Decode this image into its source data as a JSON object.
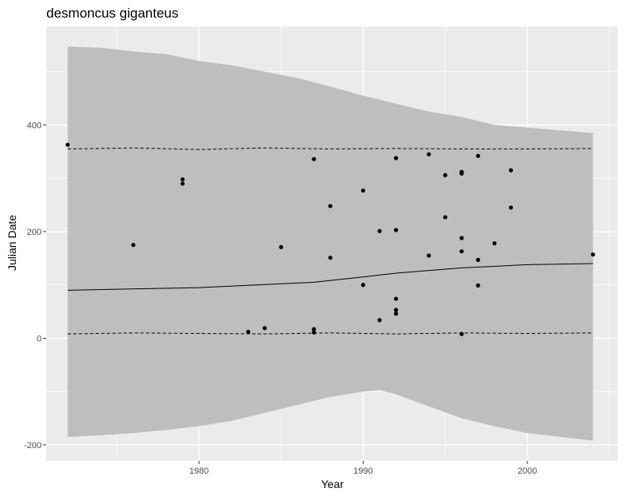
{
  "chart_data": {
    "type": "scatter",
    "title": "desmoncus giganteus",
    "xlabel": "Year",
    "ylabel": "Julian Date",
    "xlim": [
      1970.7,
      2005.5
    ],
    "ylim": [
      -230,
      585
    ],
    "x_ticks": [
      1980,
      1990,
      2000
    ],
    "y_ticks": [
      -200,
      0,
      200,
      400
    ],
    "x_minor": [
      1975,
      1985,
      1995,
      2005
    ],
    "y_minor": [
      -100,
      100,
      300,
      500
    ],
    "grid": true,
    "colors": {
      "panel": "#ebebeb",
      "grid": "#ffffff",
      "band": "#bebebe",
      "point": "#000000",
      "line": "#000000"
    },
    "points": [
      [
        1972,
        363
      ],
      [
        1976,
        175
      ],
      [
        1979,
        298
      ],
      [
        1979,
        290
      ],
      [
        1983,
        12
      ],
      [
        1984,
        19
      ],
      [
        1985,
        171
      ],
      [
        1987,
        336
      ],
      [
        1987,
        17
      ],
      [
        1987,
        11
      ],
      [
        1988,
        248
      ],
      [
        1988,
        151
      ],
      [
        1990,
        277
      ],
      [
        1990,
        100
      ],
      [
        1991,
        201
      ],
      [
        1991,
        34
      ],
      [
        1992,
        338
      ],
      [
        1992,
        203
      ],
      [
        1992,
        74
      ],
      [
        1992,
        53
      ],
      [
        1992,
        46
      ],
      [
        1994,
        345
      ],
      [
        1994,
        155
      ],
      [
        1995,
        306
      ],
      [
        1995,
        227
      ],
      [
        1996,
        312
      ],
      [
        1996,
        309
      ],
      [
        1996,
        188
      ],
      [
        1996,
        163
      ],
      [
        1996,
        8
      ],
      [
        1997,
        342
      ],
      [
        1997,
        147
      ],
      [
        1997,
        99
      ],
      [
        1998,
        178
      ],
      [
        1999,
        315
      ],
      [
        1999,
        245
      ],
      [
        2004,
        157
      ]
    ],
    "fit_line": [
      [
        1972,
        90
      ],
      [
        1980,
        95
      ],
      [
        1987,
        105
      ],
      [
        1990,
        115
      ],
      [
        1992,
        122
      ],
      [
        1996,
        132
      ],
      [
        2000,
        138
      ],
      [
        2004,
        140
      ]
    ],
    "upper_dashed": [
      [
        1972,
        355
      ],
      [
        1976,
        357
      ],
      [
        1980,
        354
      ],
      [
        1984,
        357
      ],
      [
        1988,
        355
      ],
      [
        1992,
        356
      ],
      [
        1996,
        355
      ],
      [
        2000,
        355
      ],
      [
        2004,
        356
      ]
    ],
    "lower_dashed": [
      [
        1972,
        8
      ],
      [
        1976,
        10
      ],
      [
        1980,
        9
      ],
      [
        1984,
        8
      ],
      [
        1988,
        10
      ],
      [
        1992,
        8
      ],
      [
        1996,
        10
      ],
      [
        2000,
        9
      ],
      [
        2004,
        10
      ]
    ],
    "band_upper": [
      [
        1972,
        547
      ],
      [
        1974,
        545
      ],
      [
        1976,
        538
      ],
      [
        1978,
        533
      ],
      [
        1980,
        520
      ],
      [
        1982,
        512
      ],
      [
        1984,
        500
      ],
      [
        1986,
        488
      ],
      [
        1988,
        472
      ],
      [
        1990,
        455
      ],
      [
        1992,
        440
      ],
      [
        1994,
        425
      ],
      [
        1996,
        415
      ],
      [
        1998,
        400
      ],
      [
        2000,
        395
      ],
      [
        2002,
        390
      ],
      [
        2004,
        385
      ]
    ],
    "band_lower": [
      [
        2004,
        -192
      ],
      [
        2002,
        -185
      ],
      [
        2000,
        -178
      ],
      [
        1998,
        -165
      ],
      [
        1996,
        -150
      ],
      [
        1994,
        -128
      ],
      [
        1992,
        -105
      ],
      [
        1991,
        -97
      ],
      [
        1990,
        -100
      ],
      [
        1988,
        -110
      ],
      [
        1986,
        -125
      ],
      [
        1984,
        -140
      ],
      [
        1982,
        -155
      ],
      [
        1980,
        -165
      ],
      [
        1978,
        -172
      ],
      [
        1976,
        -178
      ],
      [
        1974,
        -182
      ],
      [
        1972,
        -185
      ]
    ]
  }
}
